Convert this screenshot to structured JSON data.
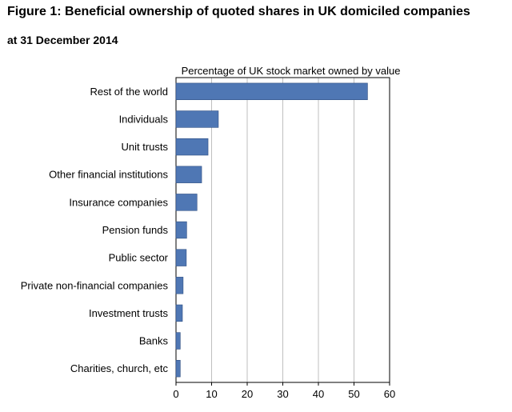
{
  "figure": {
    "title": "Figure 1: Beneficial ownership of quoted shares in UK domiciled companies",
    "subtitle": "at 31 December 2014"
  },
  "colors": {
    "bar_fill": "#4f77b4",
    "bar_stroke": "#2f4f82",
    "gridline": "#bfbfbf",
    "axis": "#000000"
  },
  "chart_data": {
    "type": "bar",
    "orientation": "horizontal",
    "title": "Percentage of UK stock market owned by value",
    "xlabel": "",
    "ylabel": "",
    "xlim": [
      0,
      60
    ],
    "x_ticks": [
      0,
      10,
      20,
      30,
      40,
      50,
      60
    ],
    "grid": true,
    "categories": [
      "Rest of the world",
      "Individuals",
      "Unit trusts",
      "Other financial institutions",
      "Insurance companies",
      "Pension funds",
      "Public sector",
      "Private non-financial companies",
      "Investment trusts",
      "Banks",
      "Charities, church, etc"
    ],
    "values": [
      53.8,
      11.9,
      9.0,
      7.2,
      5.9,
      3.0,
      2.9,
      2.0,
      1.8,
      1.2,
      1.2
    ]
  }
}
